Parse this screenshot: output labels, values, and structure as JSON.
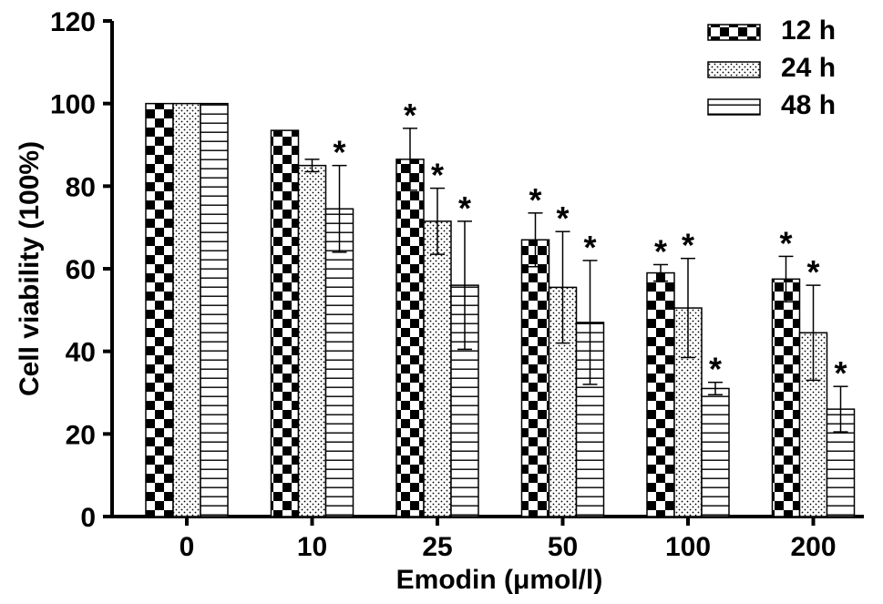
{
  "chart_data": {
    "type": "bar",
    "xlabel": "Emodin  (μmol/l)",
    "ylabel": "Cell  viability  (100%)",
    "categories": [
      "0",
      "10",
      "25",
      "50",
      "100",
      "200"
    ],
    "ylim": [
      0,
      120
    ],
    "yticks": [
      "0",
      "20",
      "40",
      "60",
      "80",
      "100",
      "120"
    ],
    "legend_position": "top-right",
    "series": [
      {
        "name": "12 h",
        "pattern": "checkerboard",
        "values": [
          100,
          93.5,
          86.5,
          67,
          59,
          57.5
        ],
        "errors": [
          0,
          0,
          7.5,
          6.5,
          2,
          5.5
        ],
        "significant": [
          false,
          false,
          true,
          true,
          true,
          true
        ]
      },
      {
        "name": "24 h",
        "pattern": "dots",
        "values": [
          100,
          85,
          71.5,
          55.5,
          50.5,
          44.5
        ],
        "errors": [
          0,
          1.5,
          8,
          13.5,
          12,
          11.5
        ],
        "significant": [
          false,
          false,
          true,
          true,
          true,
          true
        ]
      },
      {
        "name": "48 h",
        "pattern": "horizontal-lines",
        "values": [
          100,
          74.5,
          56,
          47,
          31,
          26
        ],
        "errors": [
          0,
          10.5,
          15.5,
          15,
          1.5,
          5.5
        ],
        "significant": [
          false,
          true,
          true,
          true,
          true,
          true
        ]
      }
    ],
    "significance_marker": "*"
  }
}
